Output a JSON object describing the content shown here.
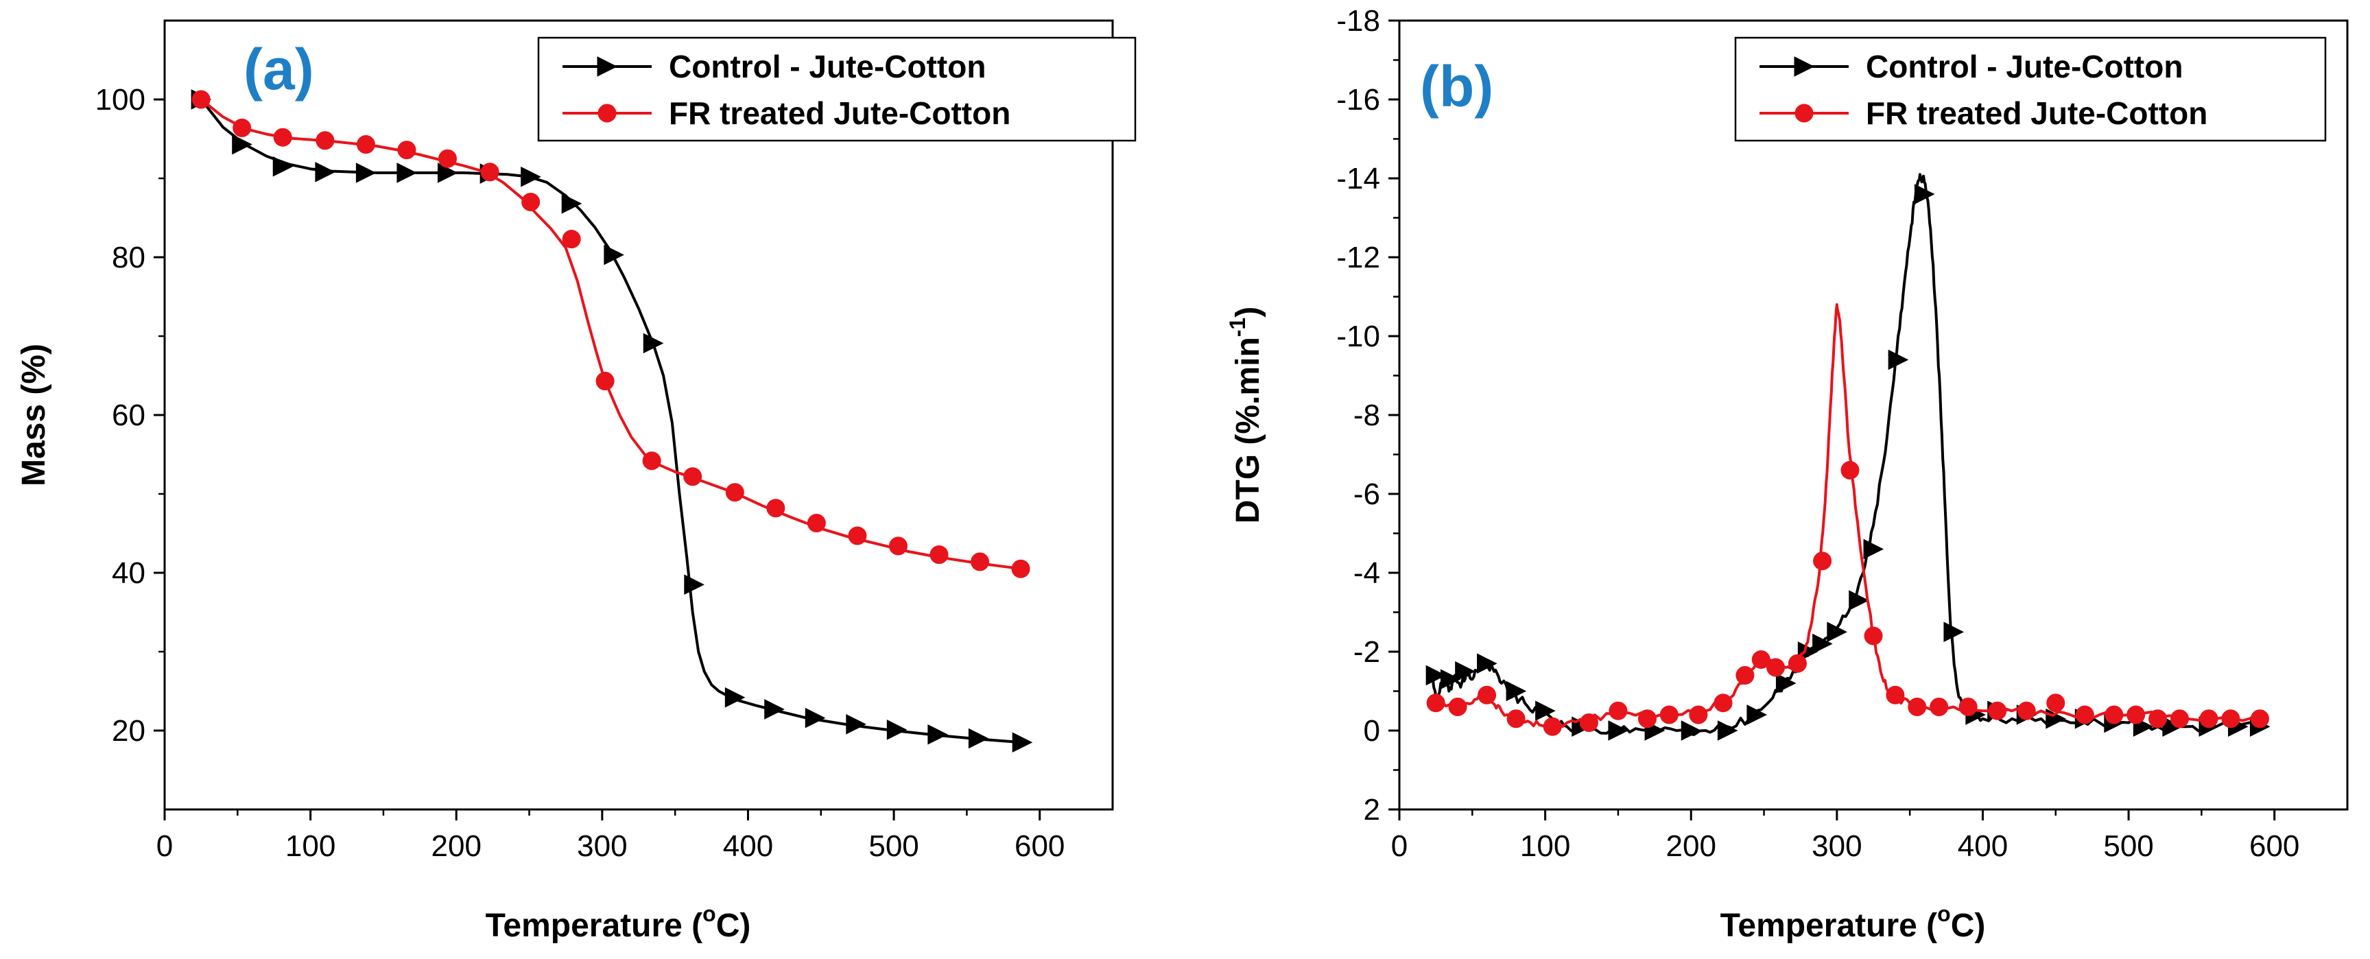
{
  "colors": {
    "control": "#000000",
    "fr": "#e8141b",
    "panel_label": "#1f7fc6"
  },
  "chart_data": [
    {
      "type": "line",
      "panel_label": "(a)",
      "xlabel": "Temperature (°C)",
      "ylabel": "Mass (%)",
      "xlim": [
        0,
        650
      ],
      "ylim": [
        10,
        110
      ],
      "xticks": [
        0,
        100,
        200,
        300,
        400,
        500,
        600
      ],
      "yticks": [
        20,
        40,
        60,
        80,
        100
      ],
      "legend_placement": "top-right",
      "series": [
        {
          "name": "Control - Jute-Cotton",
          "marker": "triangle-right",
          "color": "#000000",
          "x": [
            25,
            40,
            55,
            70,
            85,
            100,
            115,
            130,
            145,
            160,
            175,
            190,
            205,
            220,
            235,
            250,
            262,
            275,
            285,
            295,
            305,
            315,
            325,
            335,
            342,
            348,
            353,
            358,
            362,
            366,
            370,
            375,
            380,
            390,
            405,
            420,
            440,
            470,
            500,
            530,
            560,
            588
          ],
          "y": [
            100,
            96.5,
            94.3,
            92.8,
            91.8,
            91.2,
            90.9,
            90.8,
            90.7,
            90.7,
            90.7,
            90.7,
            90.7,
            90.6,
            90.5,
            90.2,
            89.5,
            87.8,
            86,
            83.8,
            81,
            77.5,
            73.5,
            69,
            65,
            59,
            50,
            42,
            35,
            30,
            27.5,
            25.8,
            25,
            24,
            23.2,
            22.5,
            21.6,
            20.7,
            20,
            19.4,
            18.9,
            18.5
          ],
          "marker_x": [
            25,
            53,
            81,
            110,
            138,
            166,
            194,
            223,
            251,
            279,
            308,
            335,
            363,
            391,
            418,
            446,
            474,
            502,
            530,
            558,
            588
          ],
          "marker_y": [
            100,
            94.3,
            91.5,
            90.8,
            90.7,
            90.7,
            90.7,
            90.6,
            90.2,
            86.8,
            80.3,
            69.1,
            38.5,
            24.2,
            22.7,
            21.6,
            20.8,
            20.1,
            19.5,
            19,
            18.5
          ]
        },
        {
          "name": "FR treated Jute-Cotton",
          "marker": "circle",
          "color": "#e8141b",
          "x": [
            25,
            40,
            55,
            70,
            85,
            100,
            115,
            130,
            145,
            160,
            175,
            190,
            205,
            220,
            232,
            245,
            255,
            265,
            275,
            283,
            290,
            296,
            300,
            305,
            312,
            320,
            330,
            340,
            350,
            360,
            375,
            390,
            410,
            430,
            450,
            470,
            490,
            510,
            530,
            555,
            575,
            588
          ],
          "y": [
            100,
            97.8,
            96.3,
            95.6,
            95.1,
            94.9,
            94.7,
            94.4,
            94.1,
            93.6,
            93,
            92.3,
            91.6,
            90.8,
            89.5,
            87.5,
            85.5,
            83.6,
            81.2,
            77,
            72,
            68,
            65.5,
            63,
            60,
            57.2,
            54.8,
            53.6,
            52.8,
            52.2,
            51.2,
            50.2,
            48.5,
            47,
            45.6,
            44.5,
            43.6,
            42.7,
            42,
            41.3,
            40.8,
            40.5
          ],
          "marker_x": [
            25,
            53,
            81,
            110,
            138,
            166,
            194,
            223,
            251,
            279,
            302,
            334,
            362,
            391,
            419,
            447,
            475,
            503,
            531,
            559,
            587
          ],
          "marker_y": [
            100,
            96.4,
            95.2,
            94.8,
            94.3,
            93.6,
            92.5,
            90.8,
            87,
            82.3,
            64.3,
            54.2,
            52.2,
            50.2,
            48.2,
            46.3,
            44.7,
            43.4,
            42.3,
            41.4,
            40.5
          ]
        }
      ]
    },
    {
      "type": "line",
      "panel_label": "(b)",
      "xlabel": "Temperature (°C)",
      "ylabel": "DTG (%.min",
      "ylabel_sup": "-1",
      "ylabel_close": ")",
      "xlim": [
        0,
        650
      ],
      "ylim": [
        2,
        -18
      ],
      "y_inverted": true,
      "xticks": [
        0,
        100,
        200,
        300,
        400,
        500,
        600
      ],
      "yticks": [
        2,
        0,
        -2,
        -4,
        -6,
        -8,
        -10,
        -12,
        -14,
        -16,
        -18
      ],
      "legend_placement": "top-right",
      "series": [
        {
          "name": "Control - Jute-Cotton",
          "marker": "triangle-right",
          "color": "#000000",
          "x": [
            22,
            26,
            30,
            34,
            38,
            42,
            46,
            50,
            55,
            60,
            65,
            70,
            78,
            86,
            95,
            105,
            115,
            130,
            150,
            170,
            190,
            210,
            225,
            240,
            250,
            260,
            270,
            280,
            290,
            300,
            310,
            318,
            325,
            332,
            338,
            343,
            347,
            351,
            354,
            357,
            360,
            363,
            366,
            369,
            372,
            375,
            378,
            382,
            386,
            392,
            400,
            420,
            440,
            460,
            480,
            500,
            520,
            540,
            560,
            590
          ],
          "y": [
            -1.4,
            -0.8,
            -1.3,
            -1.0,
            -1.4,
            -1.1,
            -1.5,
            -1.3,
            -1.6,
            -1.7,
            -1.5,
            -1.2,
            -0.9,
            -0.7,
            -0.5,
            -0.3,
            -0.1,
            0,
            0,
            0,
            0,
            0,
            -0.1,
            -0.3,
            -0.6,
            -1.0,
            -1.5,
            -1.9,
            -2.2,
            -2.6,
            -3.2,
            -4.0,
            -5.2,
            -6.8,
            -8.6,
            -10.2,
            -11.6,
            -12.8,
            -13.6,
            -14.1,
            -13.9,
            -13.2,
            -11.8,
            -9.8,
            -7.5,
            -5.0,
            -2.6,
            -1.2,
            -0.6,
            -0.4,
            -0.3,
            -0.3,
            -0.3,
            -0.2,
            -0.2,
            -0.2,
            -0.1,
            -0.1,
            -0.1,
            -0.1
          ],
          "marker_x": [
            25,
            35,
            45,
            60,
            80,
            100,
            125,
            150,
            175,
            200,
            225,
            245,
            265,
            280,
            290,
            300,
            315,
            325,
            342,
            360,
            380,
            395,
            410,
            430,
            450,
            470,
            490,
            510,
            530,
            555,
            575,
            590
          ],
          "marker_y": [
            -1.4,
            -1.3,
            -1.5,
            -1.7,
            -1.0,
            -0.5,
            -0.1,
            0,
            0,
            0,
            0,
            -0.4,
            -1.2,
            -2.0,
            -2.2,
            -2.5,
            -3.3,
            -4.6,
            -9.4,
            -13.6,
            -2.5,
            -0.4,
            -0.5,
            -0.4,
            -0.3,
            -0.3,
            -0.2,
            -0.1,
            -0.1,
            -0.1,
            -0.1,
            -0.1
          ],
          "noise": 0.12
        },
        {
          "name": "FR treated Jute-Cotton",
          "marker": "circle",
          "color": "#e8141b",
          "x": [
            22,
            30,
            40,
            50,
            58,
            64,
            70,
            80,
            90,
            100,
            115,
            130,
            150,
            170,
            190,
            210,
            225,
            235,
            245,
            252,
            258,
            265,
            272,
            278,
            283,
            288,
            292,
            295,
            298,
            300,
            302,
            305,
            308,
            311,
            315,
            320,
            325,
            330,
            335,
            340,
            350,
            360,
            380,
            400,
            420,
            440,
            460,
            480,
            500,
            520,
            540,
            560,
            590
          ],
          "y": [
            -0.7,
            -0.7,
            -0.6,
            -0.7,
            -0.9,
            -0.7,
            -0.5,
            -0.3,
            -0.2,
            -0.1,
            -0.2,
            -0.3,
            -0.4,
            -0.4,
            -0.4,
            -0.5,
            -0.8,
            -1.2,
            -1.7,
            -1.8,
            -1.7,
            -1.6,
            -1.7,
            -2.0,
            -2.8,
            -4.0,
            -5.8,
            -7.8,
            -9.8,
            -10.8,
            -10.4,
            -8.9,
            -7.3,
            -6.3,
            -5.0,
            -3.6,
            -2.4,
            -1.5,
            -1.0,
            -0.8,
            -0.7,
            -0.6,
            -0.6,
            -0.5,
            -0.5,
            -0.5,
            -0.4,
            -0.4,
            -0.4,
            -0.4,
            -0.3,
            -0.3,
            -0.3
          ],
          "marker_x": [
            25,
            40,
            60,
            80,
            105,
            130,
            150,
            170,
            185,
            205,
            222,
            237,
            248,
            258,
            273,
            290,
            309,
            325,
            340,
            355,
            370,
            390,
            410,
            430,
            450,
            470,
            490,
            505,
            520,
            535,
            555,
            570,
            590
          ],
          "marker_y": [
            -0.7,
            -0.6,
            -0.9,
            -0.3,
            -0.1,
            -0.2,
            -0.5,
            -0.3,
            -0.4,
            -0.4,
            -0.7,
            -1.4,
            -1.8,
            -1.6,
            -1.7,
            -4.3,
            -6.6,
            -2.4,
            -0.9,
            -0.6,
            -0.6,
            -0.6,
            -0.5,
            -0.5,
            -0.7,
            -0.4,
            -0.4,
            -0.4,
            -0.3,
            -0.3,
            -0.3,
            -0.3,
            -0.3
          ],
          "noise": 0.08
        }
      ]
    }
  ]
}
